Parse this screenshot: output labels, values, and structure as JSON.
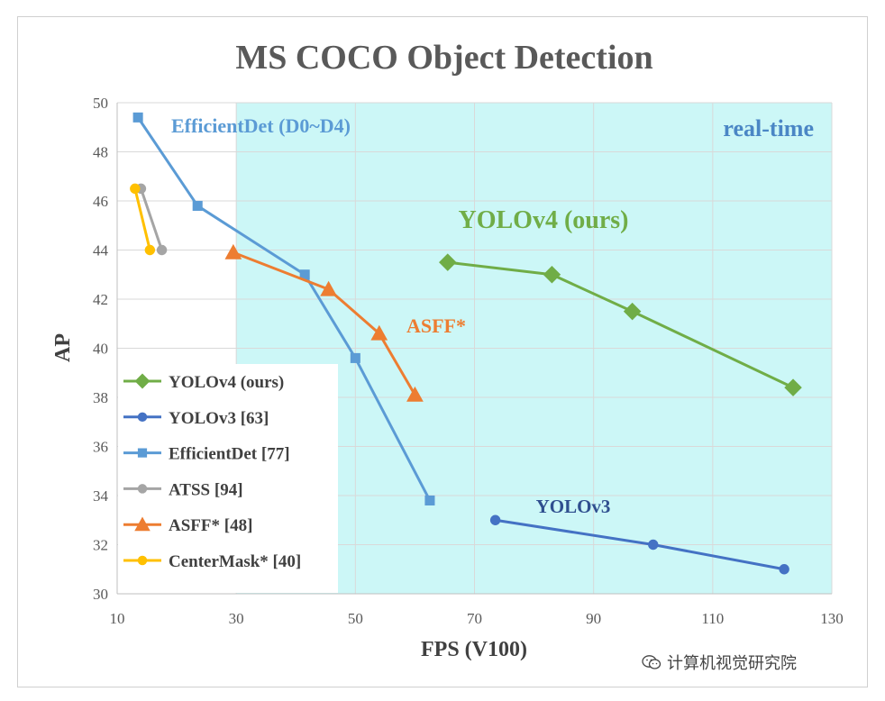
{
  "chart_data": {
    "type": "line",
    "title": "MS COCO Object Detection",
    "xlabel": "FPS (V100)",
    "ylabel": "AP",
    "xlim": [
      10,
      130
    ],
    "ylim": [
      30,
      50
    ],
    "xticks": [
      10,
      30,
      50,
      70,
      90,
      110,
      130
    ],
    "yticks": [
      30,
      32,
      34,
      36,
      38,
      40,
      42,
      44,
      46,
      48,
      50
    ],
    "grid": true,
    "legend_position": "lower-left",
    "shaded_region": {
      "label": "real-time",
      "x_from": 30,
      "x_to": 130,
      "color": "#ccf7f7"
    },
    "series": [
      {
        "name": "YOLOv4 (ours)",
        "color": "#70ad47",
        "marker": "diamond",
        "x": [
          65.5,
          83,
          96.5,
          123.5
        ],
        "y": [
          43.5,
          43.0,
          41.5,
          38.4
        ]
      },
      {
        "name": "YOLOv3 [63]",
        "color": "#4472c4",
        "marker": "circle",
        "x": [
          73.5,
          100,
          122
        ],
        "y": [
          33.0,
          32.0,
          31.0
        ]
      },
      {
        "name": "EfficientDet [77]",
        "color": "#5b9bd5",
        "marker": "square",
        "x": [
          13.5,
          23.5,
          41.5,
          50,
          62.5
        ],
        "y": [
          49.4,
          45.8,
          43.0,
          39.6,
          33.8
        ]
      },
      {
        "name": "ATSS [94]",
        "color": "#a5a5a5",
        "marker": "circle",
        "x": [
          14,
          17.5
        ],
        "y": [
          46.5,
          44.0
        ]
      },
      {
        "name": "ASFF* [48]",
        "color": "#ed7d31",
        "marker": "triangle",
        "x": [
          29.5,
          45.5,
          54,
          60
        ],
        "y": [
          43.9,
          42.4,
          40.6,
          38.1
        ]
      },
      {
        "name": "CenterMask* [40]",
        "color": "#ffc000",
        "marker": "circle",
        "x": [
          13,
          15.5
        ],
        "y": [
          46.5,
          44.0
        ]
      }
    ],
    "annotations": [
      {
        "text": "EfficientDet (D0~D4)",
        "color": "#5b9bd5"
      },
      {
        "text": "real-time",
        "color": "#4a86c5"
      },
      {
        "text": "YOLOv4 (ours)",
        "color": "#70ad47"
      },
      {
        "text": "ASFF*",
        "color": "#ed7d31"
      },
      {
        "text": "YOLOv3",
        "color": "#2f4f8f"
      }
    ]
  },
  "watermark": {
    "text": "计算机视觉研究院"
  }
}
